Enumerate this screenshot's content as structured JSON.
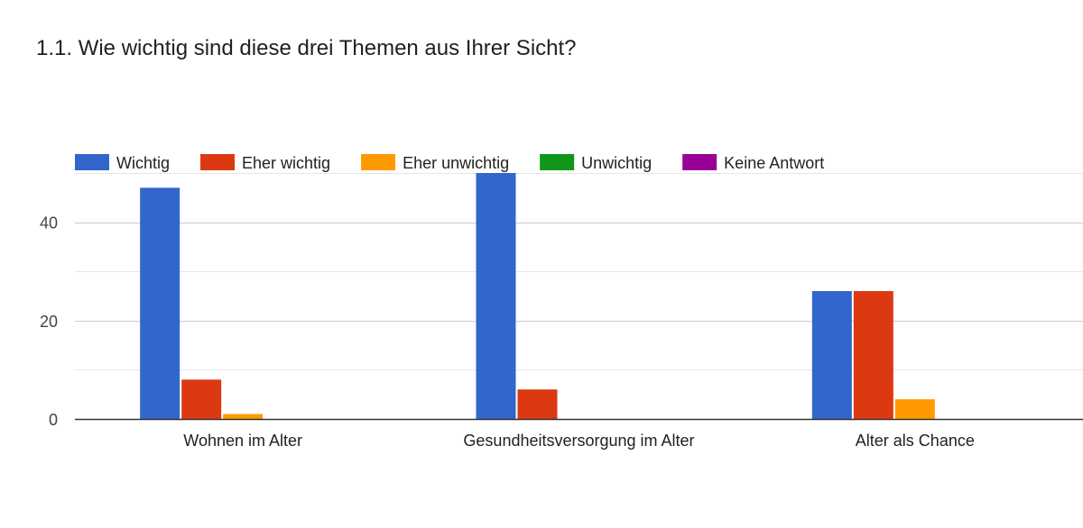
{
  "chart_data": {
    "type": "bar",
    "title": "1.1. Wie wichtig sind diese drei Themen aus Ihrer Sicht?",
    "xlabel": "",
    "ylabel": "",
    "categories": [
      "Wohnen im Alter",
      "Gesundheitsversorgung im Alter",
      "Alter als Chance"
    ],
    "series": [
      {
        "name": "Wichtig",
        "color": "#3366cc",
        "values": [
          47,
          50,
          26
        ]
      },
      {
        "name": "Eher wichtig",
        "color": "#dc3912",
        "values": [
          8,
          6,
          26
        ]
      },
      {
        "name": "Eher unwichtig",
        "color": "#ff9900",
        "values": [
          1,
          0,
          4
        ]
      },
      {
        "name": "Unwichtig",
        "color": "#109618",
        "values": [
          0,
          0,
          0
        ]
      },
      {
        "name": "Keine Antwort",
        "color": "#990099",
        "values": [
          0,
          0,
          0
        ]
      }
    ],
    "ylim": [
      0,
      50
    ],
    "yticks": [
      0,
      20,
      40
    ],
    "grid": true,
    "legend_position": "top"
  }
}
